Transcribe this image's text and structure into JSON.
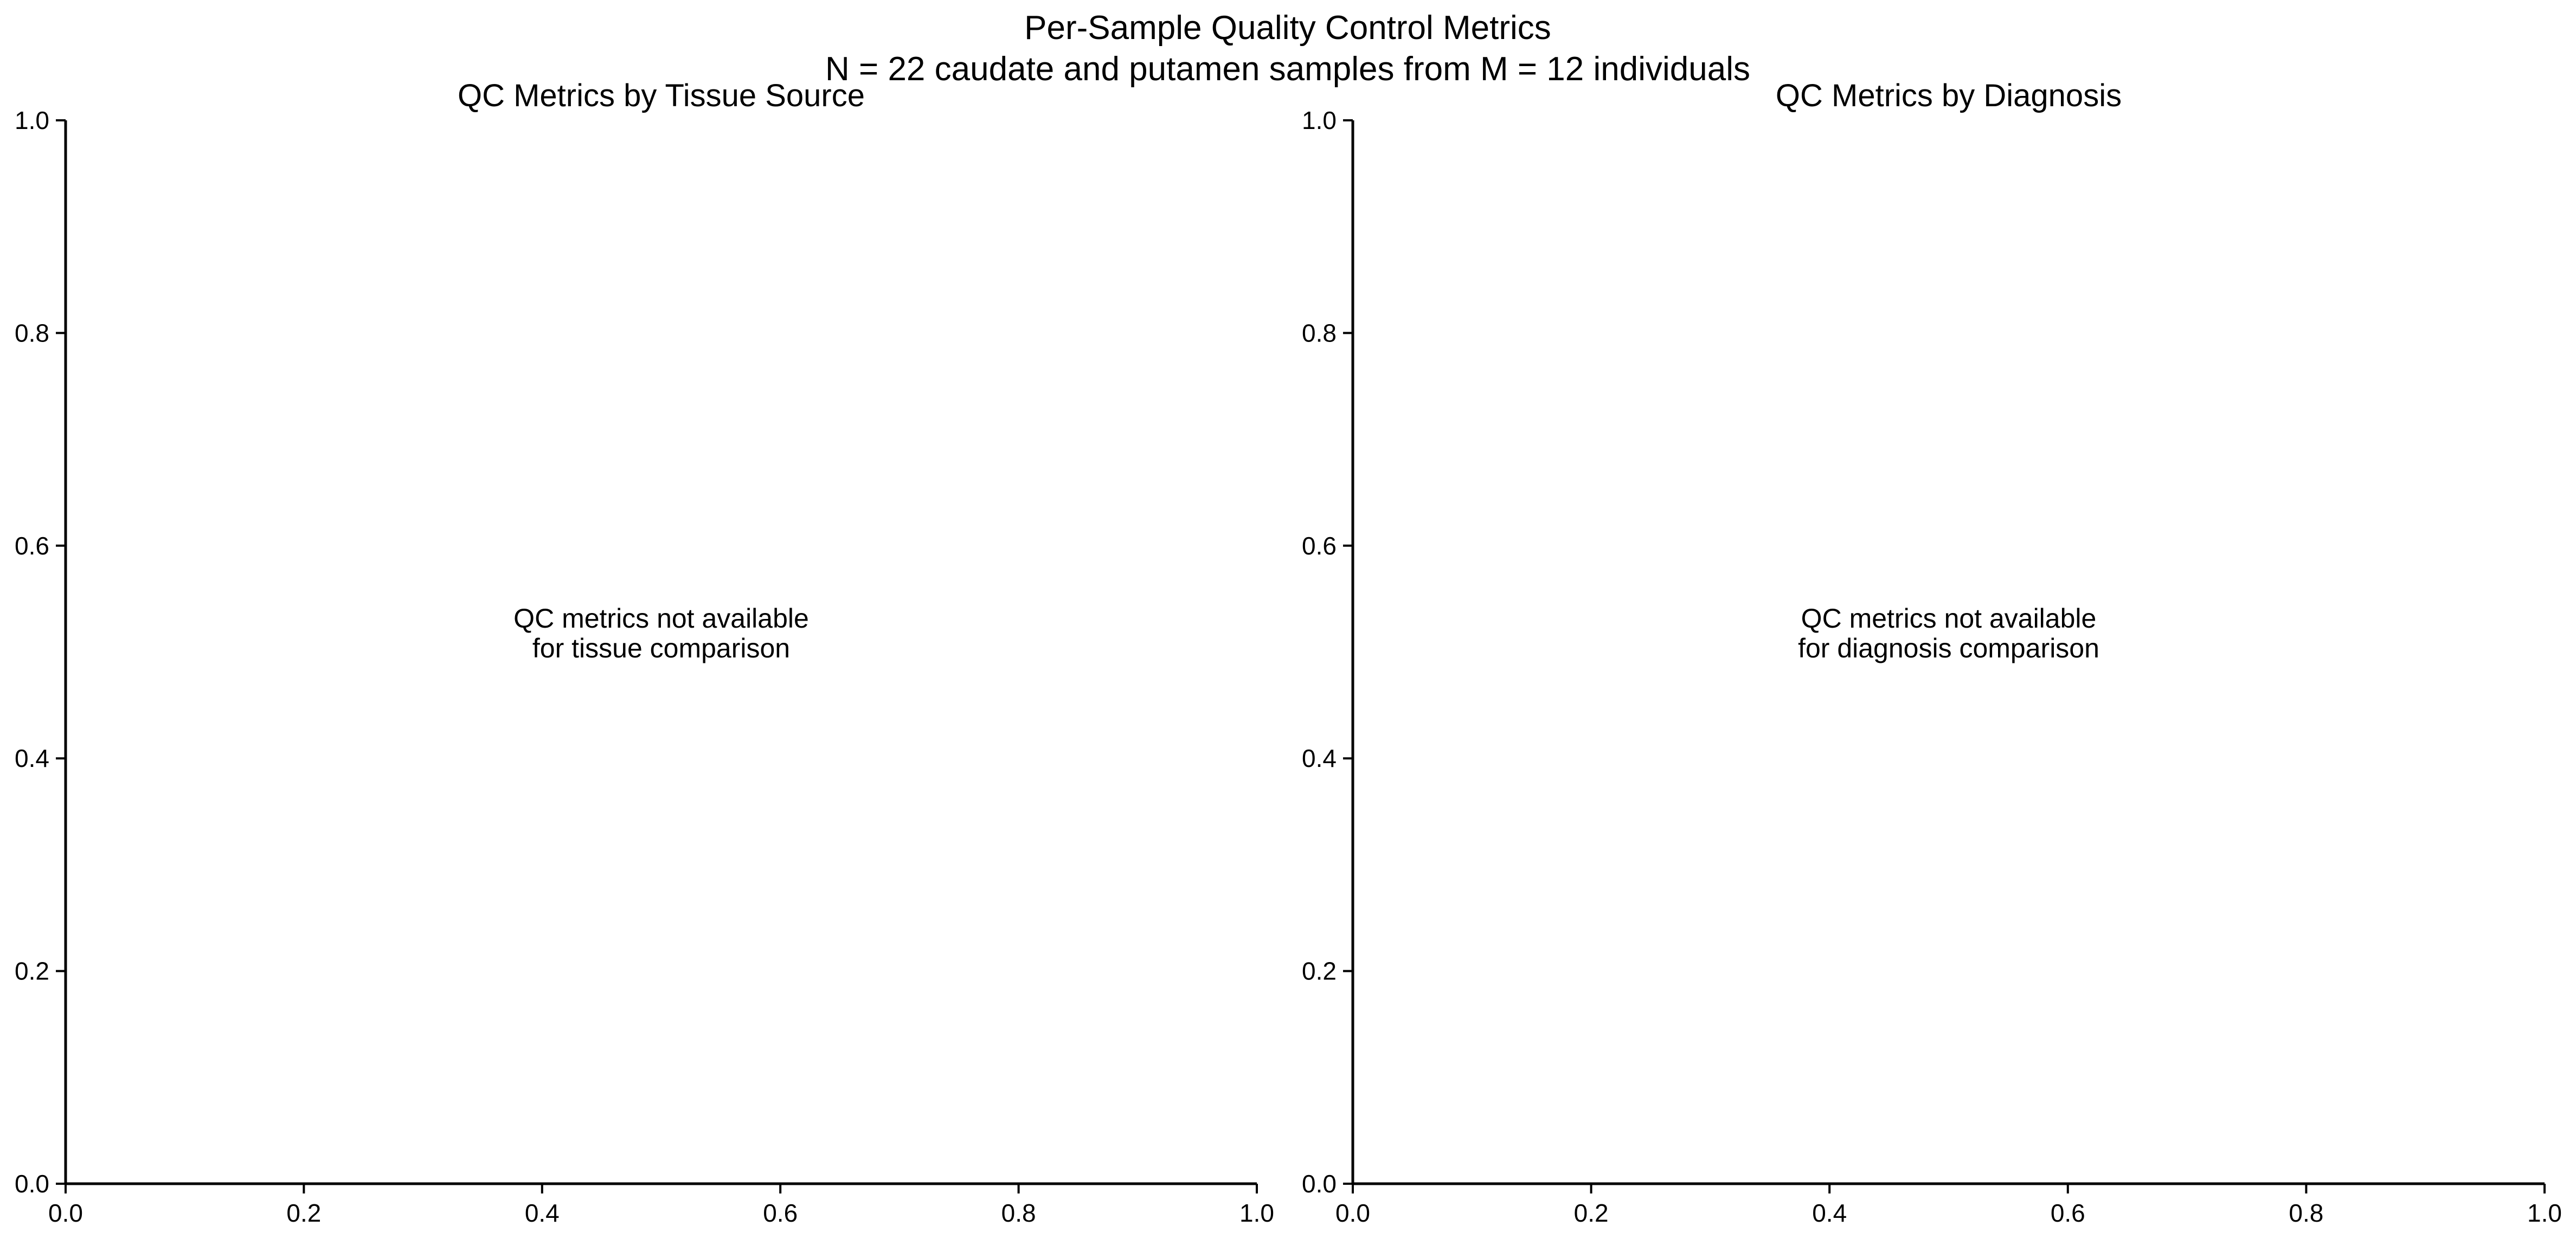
{
  "figure": {
    "suptitle_line1": "Per-Sample Quality Control Metrics",
    "suptitle_line2": "N = 22 caudate and putamen samples from M = 12 individuals"
  },
  "colors": {
    "axis": "#000000",
    "background": "#ffffff",
    "text": "#000000"
  },
  "chart_data": [
    {
      "type": "scatter",
      "title": "QC Metrics by Tissue Source",
      "xlabel": "",
      "ylabel": "",
      "xlim": [
        0.0,
        1.0
      ],
      "ylim": [
        0.0,
        1.0
      ],
      "xticks": [
        "0.0",
        "0.2",
        "0.4",
        "0.6",
        "0.8",
        "1.0"
      ],
      "yticks": [
        "0.0",
        "0.2",
        "0.4",
        "0.6",
        "0.8",
        "1.0"
      ],
      "grid": false,
      "series": [],
      "annotation": {
        "line1": "QC metrics not available",
        "line2": "for tissue comparison",
        "x": 0.5,
        "y": 0.5
      }
    },
    {
      "type": "scatter",
      "title": "QC Metrics by Diagnosis",
      "xlabel": "",
      "ylabel": "",
      "xlim": [
        0.0,
        1.0
      ],
      "ylim": [
        0.0,
        1.0
      ],
      "xticks": [
        "0.0",
        "0.2",
        "0.4",
        "0.6",
        "0.8",
        "1.0"
      ],
      "yticks": [
        "0.0",
        "0.2",
        "0.4",
        "0.6",
        "0.8",
        "1.0"
      ],
      "grid": false,
      "series": [],
      "annotation": {
        "line1": "QC metrics not available",
        "line2": "for diagnosis comparison",
        "x": 0.5,
        "y": 0.5
      }
    }
  ]
}
